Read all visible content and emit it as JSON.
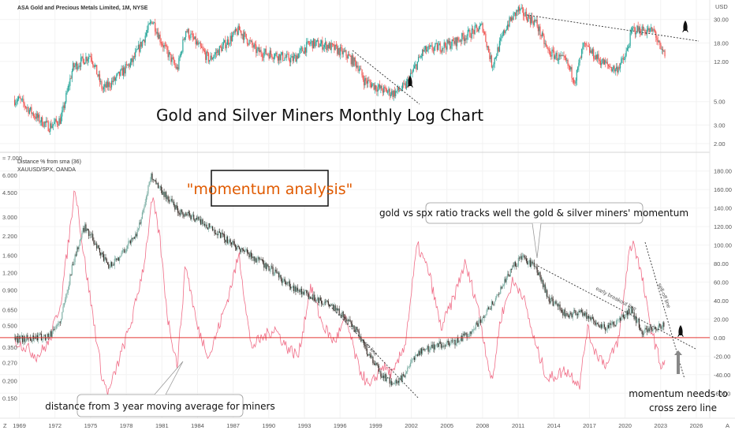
{
  "header": {
    "symbol_title": "ASA Gold and Precious Metals Limited, 1M, NYSE",
    "currency": "USD",
    "lower_indicator": "Distance % from sma (36)",
    "lower_overlay": "XAUUSD/SPX, OANDA",
    "lower_left_top": "≈ 7.000",
    "corner_left": "Z",
    "corner_right": "A"
  },
  "annotations": {
    "main_title": "Gold and Silver Miners Monthly Log Chart",
    "momentum_box": "\"momentum analysis\"",
    "ratio_callout": "gold vs spx ratio tracks well the gold & silver miners' momentum",
    "distance_callout": "distance from 3 year moving average for miners",
    "zero_line_note_1": "momentum needs to",
    "zero_line_note_2": "cross zero line",
    "early_breakout": "early breakout line",
    "sell_off": "sell-off line",
    "up_line": "up line"
  },
  "colors": {
    "up": "#26a69a",
    "down": "#ef5350",
    "dark_candle": "#3b2f2a",
    "momentum": "#f06d87",
    "zero_line": "#e53935",
    "orange": "#e05a00",
    "trend": "#333333"
  },
  "chart_data": [
    {
      "type": "candlestick",
      "name": "ASA Gold and Precious Metals Limited, 1M, NYSE",
      "scale": "log",
      "y_ticks": [
        "30.00",
        "18.00",
        "12.00",
        "5.00",
        "3.00",
        "2.00"
      ],
      "x_ticks": [
        "1969",
        "1972",
        "1975",
        "1978",
        "1981",
        "1984",
        "1987",
        "1990",
        "1993",
        "1996",
        "1999",
        "2002",
        "2005",
        "2008",
        "2011",
        "2014",
        "2017",
        "2020",
        "2023",
        "2026"
      ],
      "ylim": [
        1.8,
        40
      ],
      "close_path": [
        {
          "x": 1969.0,
          "y": 5.2
        },
        {
          "x": 1970.5,
          "y": 3.5
        },
        {
          "x": 1971.5,
          "y": 2.9
        },
        {
          "x": 1972.5,
          "y": 3.4
        },
        {
          "x": 1973.5,
          "y": 10.5
        },
        {
          "x": 1974.2,
          "y": 12.0
        },
        {
          "x": 1975.0,
          "y": 14.0
        },
        {
          "x": 1976.0,
          "y": 6.5
        },
        {
          "x": 1977.0,
          "y": 8.0
        },
        {
          "x": 1978.5,
          "y": 12.0
        },
        {
          "x": 1979.5,
          "y": 20.0
        },
        {
          "x": 1980.2,
          "y": 30.0
        },
        {
          "x": 1981.0,
          "y": 18.0
        },
        {
          "x": 1982.3,
          "y": 10.0
        },
        {
          "x": 1983.0,
          "y": 24.0
        },
        {
          "x": 1985.0,
          "y": 12.5
        },
        {
          "x": 1987.5,
          "y": 24.0
        },
        {
          "x": 1989.0,
          "y": 15.0
        },
        {
          "x": 1990.5,
          "y": 14.0
        },
        {
          "x": 1992.0,
          "y": 12.5
        },
        {
          "x": 1993.5,
          "y": 18.0
        },
        {
          "x": 1995.0,
          "y": 17.0
        },
        {
          "x": 1996.5,
          "y": 14.0
        },
        {
          "x": 1997.5,
          "y": 11.0
        },
        {
          "x": 1998.0,
          "y": 8.0
        },
        {
          "x": 1999.5,
          "y": 6.5
        },
        {
          "x": 2000.5,
          "y": 6.0
        },
        {
          "x": 2001.5,
          "y": 7.0
        },
        {
          "x": 2003.0,
          "y": 15.0
        },
        {
          "x": 2005.5,
          "y": 18.0
        },
        {
          "x": 2008.0,
          "y": 26.0
        },
        {
          "x": 2008.8,
          "y": 11.0
        },
        {
          "x": 2010.0,
          "y": 26.0
        },
        {
          "x": 2011.0,
          "y": 37.0
        },
        {
          "x": 2012.5,
          "y": 28.0
        },
        {
          "x": 2013.5,
          "y": 15.0
        },
        {
          "x": 2015.0,
          "y": 12.0
        },
        {
          "x": 2015.8,
          "y": 8.0
        },
        {
          "x": 2016.5,
          "y": 17.0
        },
        {
          "x": 2018.0,
          "y": 12.0
        },
        {
          "x": 2019.2,
          "y": 10.0
        },
        {
          "x": 2020.0,
          "y": 13.0
        },
        {
          "x": 2020.6,
          "y": 24.0
        },
        {
          "x": 2021.5,
          "y": 24.0
        },
        {
          "x": 2022.5,
          "y": 23.0
        },
        {
          "x": 2023.0,
          "y": 15.0
        },
        {
          "x": 2023.4,
          "y": 14.0
        }
      ]
    },
    {
      "type": "line",
      "name": "Distance % from sma (36)",
      "right_axis_ticks": [
        "180.00",
        "160.00",
        "140.00",
        "120.00",
        "100.00",
        "80.00",
        "60.00",
        "40.00",
        "20.00",
        "0.00",
        "-20.00",
        "-40.00",
        "-60.00"
      ],
      "left_axis_ticks": [
        "6.000",
        "4.500",
        "3.000",
        "2.200",
        "1.600",
        "1.200",
        "0.900",
        "0.650",
        "0.500",
        "0.350",
        "0.270",
        "0.200",
        "0.150"
      ],
      "ylim": [
        -70,
        190
      ],
      "zero_line": 0,
      "values": [
        {
          "x": 1969.0,
          "y": -5
        },
        {
          "x": 1970.5,
          "y": -20
        },
        {
          "x": 1971.5,
          "y": -5
        },
        {
          "x": 1972.5,
          "y": 40
        },
        {
          "x": 1973.2,
          "y": 110
        },
        {
          "x": 1973.7,
          "y": 165
        },
        {
          "x": 1974.3,
          "y": 100
        },
        {
          "x": 1975.0,
          "y": 40
        },
        {
          "x": 1976.0,
          "y": -45
        },
        {
          "x": 1976.5,
          "y": -60
        },
        {
          "x": 1977.5,
          "y": -20
        },
        {
          "x": 1978.5,
          "y": 20
        },
        {
          "x": 1979.5,
          "y": 80
        },
        {
          "x": 1980.2,
          "y": 150
        },
        {
          "x": 1980.8,
          "y": 110
        },
        {
          "x": 1981.5,
          "y": 20
        },
        {
          "x": 1982.3,
          "y": -30
        },
        {
          "x": 1983.0,
          "y": 80
        },
        {
          "x": 1984.0,
          "y": 10
        },
        {
          "x": 1985.0,
          "y": -20
        },
        {
          "x": 1986.5,
          "y": 40
        },
        {
          "x": 1987.5,
          "y": 90
        },
        {
          "x": 1988.5,
          "y": -10
        },
        {
          "x": 1989.5,
          "y": 0
        },
        {
          "x": 1990.5,
          "y": 10
        },
        {
          "x": 1991.5,
          "y": -10
        },
        {
          "x": 1992.5,
          "y": -20
        },
        {
          "x": 1993.5,
          "y": 55
        },
        {
          "x": 1994.5,
          "y": 15
        },
        {
          "x": 1995.5,
          "y": -5
        },
        {
          "x": 1996.5,
          "y": 20
        },
        {
          "x": 1997.5,
          "y": -30
        },
        {
          "x": 1998.5,
          "y": -55
        },
        {
          "x": 1999.5,
          "y": -30
        },
        {
          "x": 2000.5,
          "y": -40
        },
        {
          "x": 2001.5,
          "y": -5
        },
        {
          "x": 2002.5,
          "y": 100
        },
        {
          "x": 2003.5,
          "y": 70
        },
        {
          "x": 2004.5,
          "y": 10
        },
        {
          "x": 2005.5,
          "y": 40
        },
        {
          "x": 2006.5,
          "y": 80
        },
        {
          "x": 2007.5,
          "y": 40
        },
        {
          "x": 2008.8,
          "y": -50
        },
        {
          "x": 2009.5,
          "y": 20
        },
        {
          "x": 2010.5,
          "y": 60
        },
        {
          "x": 2011.3,
          "y": 50
        },
        {
          "x": 2012.5,
          "y": -10
        },
        {
          "x": 2013.5,
          "y": -45
        },
        {
          "x": 2015.0,
          "y": -35
        },
        {
          "x": 2016.2,
          "y": -50
        },
        {
          "x": 2016.8,
          "y": 10
        },
        {
          "x": 2017.5,
          "y": -15
        },
        {
          "x": 2018.5,
          "y": -30
        },
        {
          "x": 2019.5,
          "y": 0
        },
        {
          "x": 2020.3,
          "y": 90
        },
        {
          "x": 2020.7,
          "y": 105
        },
        {
          "x": 2021.5,
          "y": 60
        },
        {
          "x": 2022.0,
          "y": 20
        },
        {
          "x": 2022.6,
          "y": -10
        },
        {
          "x": 2023.0,
          "y": -30
        },
        {
          "x": 2023.4,
          "y": -25
        }
      ]
    },
    {
      "type": "candlestick",
      "name": "XAUUSD/SPX, OANDA",
      "scale": "log",
      "ylim": [
        0.14,
        7.5
      ],
      "close_path": [
        {
          "x": 1969.0,
          "y": 0.4
        },
        {
          "x": 1971.5,
          "y": 0.42
        },
        {
          "x": 1972.5,
          "y": 0.55
        },
        {
          "x": 1973.5,
          "y": 1.4
        },
        {
          "x": 1974.5,
          "y": 2.6
        },
        {
          "x": 1975.5,
          "y": 1.9
        },
        {
          "x": 1976.5,
          "y": 1.3
        },
        {
          "x": 1977.5,
          "y": 1.6
        },
        {
          "x": 1979.0,
          "y": 2.4
        },
        {
          "x": 1980.1,
          "y": 6.0
        },
        {
          "x": 1981.0,
          "y": 4.6
        },
        {
          "x": 1982.5,
          "y": 3.3
        },
        {
          "x": 1984.0,
          "y": 2.9
        },
        {
          "x": 1985.5,
          "y": 2.4
        },
        {
          "x": 1987.0,
          "y": 1.9
        },
        {
          "x": 1988.5,
          "y": 1.6
        },
        {
          "x": 1990.0,
          "y": 1.3
        },
        {
          "x": 1991.5,
          "y": 1.0
        },
        {
          "x": 1993.0,
          "y": 0.85
        },
        {
          "x": 1994.5,
          "y": 0.75
        },
        {
          "x": 1996.0,
          "y": 0.62
        },
        {
          "x": 1997.5,
          "y": 0.45
        },
        {
          "x": 1998.5,
          "y": 0.3
        },
        {
          "x": 1999.5,
          "y": 0.22
        },
        {
          "x": 2000.5,
          "y": 0.19
        },
        {
          "x": 2001.5,
          "y": 0.22
        },
        {
          "x": 2002.5,
          "y": 0.32
        },
        {
          "x": 2004.0,
          "y": 0.36
        },
        {
          "x": 2005.5,
          "y": 0.37
        },
        {
          "x": 2007.0,
          "y": 0.45
        },
        {
          "x": 2008.5,
          "y": 0.65
        },
        {
          "x": 2009.5,
          "y": 0.9
        },
        {
          "x": 2010.5,
          "y": 1.3
        },
        {
          "x": 2011.3,
          "y": 1.55
        },
        {
          "x": 2012.5,
          "y": 1.3
        },
        {
          "x": 2013.5,
          "y": 0.8
        },
        {
          "x": 2015.0,
          "y": 0.6
        },
        {
          "x": 2016.5,
          "y": 0.62
        },
        {
          "x": 2017.5,
          "y": 0.52
        },
        {
          "x": 2018.5,
          "y": 0.48
        },
        {
          "x": 2019.5,
          "y": 0.55
        },
        {
          "x": 2020.5,
          "y": 0.65
        },
        {
          "x": 2021.5,
          "y": 0.45
        },
        {
          "x": 2022.5,
          "y": 0.48
        },
        {
          "x": 2023.2,
          "y": 0.5
        }
      ]
    }
  ]
}
